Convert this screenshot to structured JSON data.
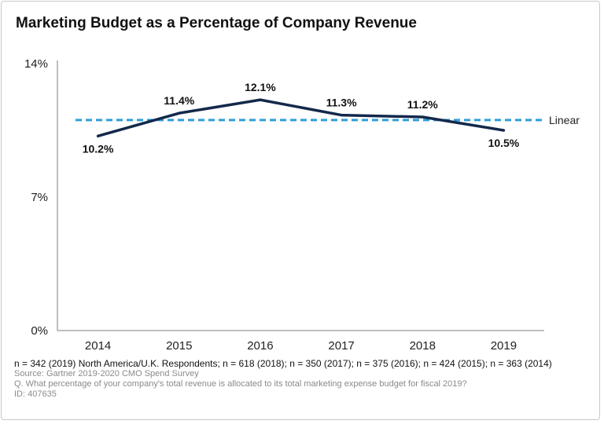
{
  "chart_data": {
    "type": "line",
    "title": "Marketing Budget as a Percentage of Company Revenue",
    "categories": [
      "2014",
      "2015",
      "2016",
      "2017",
      "2018",
      "2019"
    ],
    "series": [
      {
        "values": [
          10.2,
          11.4,
          12.1,
          11.3,
          11.2,
          10.5
        ],
        "color": "#13294b"
      }
    ],
    "data_labels": [
      "10.2%",
      "11.4%",
      "12.1%",
      "11.3%",
      "11.2%",
      "10.5%"
    ],
    "trendline": {
      "name": "Linear",
      "values": [
        11.04,
        11.04
      ],
      "color": "#2e9fd9",
      "style": "dashed"
    },
    "ylim": [
      0,
      14
    ],
    "yticks": [
      0,
      7,
      14
    ],
    "ytick_labels": [
      "0%",
      "7%",
      "14%"
    ],
    "xlabel": "",
    "ylabel": "",
    "grid": false,
    "legend": "right"
  },
  "notes": {
    "respondents": "n = 342 (2019) North America/U.K. Respondents; n = 618 (2018); n = 350 (2017); n = 375 (2016); n = 424 (2015);  n = 363 (2014)",
    "source": "Source: Gartner 2019-2020 CMO Spend Survey",
    "question": "Q. What percentage of your company's total revenue is allocated to its total marketing expense budget for fiscal 2019?",
    "id": "ID: 407635"
  }
}
